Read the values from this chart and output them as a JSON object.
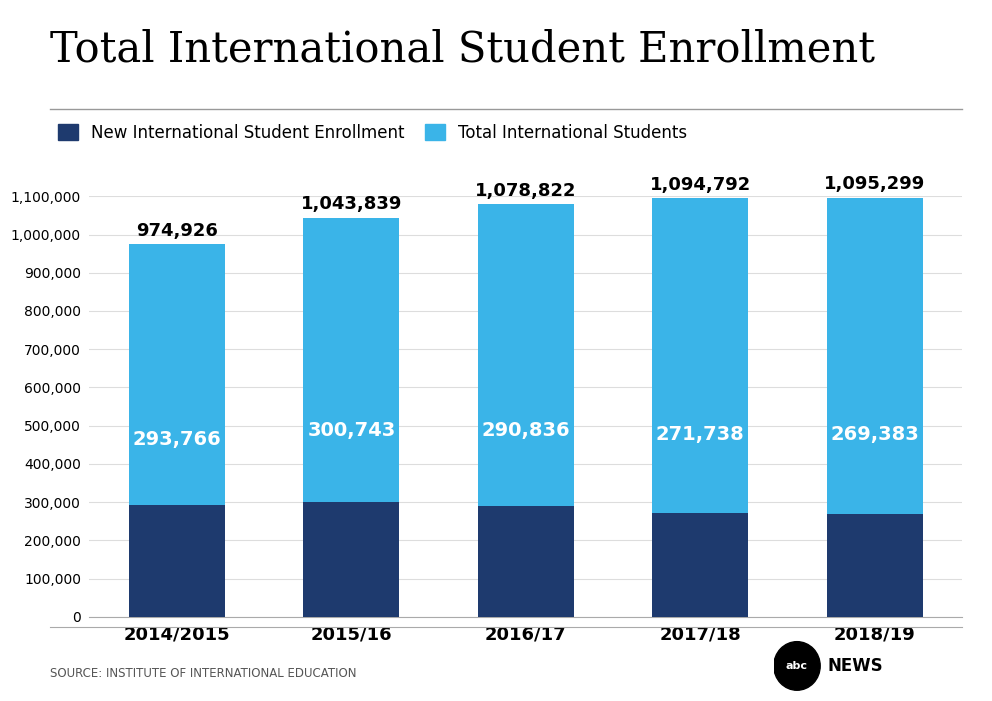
{
  "title": "Total International Student Enrollment",
  "categories": [
    "2014/2015",
    "2015/16",
    "2016/17",
    "2017/18",
    "2018/19"
  ],
  "new_enrollment": [
    293766,
    300743,
    290836,
    271738,
    269383
  ],
  "total_students": [
    974926,
    1043839,
    1078822,
    1094792,
    1095299
  ],
  "total_labels": [
    "974,926",
    "1,043,839",
    "1,078,822",
    "1,094,792",
    "1,095,299"
  ],
  "new_labels": [
    "293,766",
    "300,743",
    "290,836",
    "271,738",
    "269,383"
  ],
  "color_new": "#1e3a6e",
  "color_total": "#3ab4e8",
  "ylim": [
    0,
    1100000
  ],
  "yticks": [
    0,
    100000,
    200000,
    300000,
    400000,
    500000,
    600000,
    700000,
    800000,
    900000,
    1000000,
    1100000
  ],
  "ytick_labels": [
    "0",
    "100,000",
    "200,000",
    "300,000",
    "400,000",
    "500,000",
    "600,000",
    "700,000",
    "800,000",
    "900,000",
    "1,000,000",
    "1,100,000"
  ],
  "legend_new": "New International Student Enrollment",
  "legend_total": "Total International Students",
  "source_text": "SOURCE: INSTITUTE OF INTERNATIONAL EDUCATION",
  "background_color": "#ffffff",
  "title_fontsize": 30,
  "bar_width": 0.55
}
